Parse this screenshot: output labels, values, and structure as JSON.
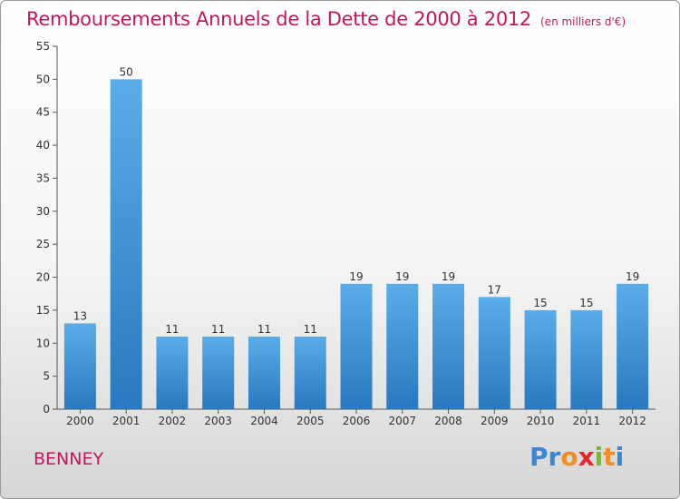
{
  "chart_data": {
    "type": "bar",
    "title": "Remboursements Annuels de la Dette de 2000 à 2012",
    "subtitle": "(en milliers d'€)",
    "categories": [
      "2000",
      "2001",
      "2002",
      "2003",
      "2004",
      "2005",
      "2006",
      "2007",
      "2008",
      "2009",
      "2010",
      "2011",
      "2012"
    ],
    "values": [
      13,
      50,
      11,
      11,
      11,
      11,
      19,
      19,
      19,
      17,
      15,
      15,
      19
    ],
    "ylim": [
      0,
      55
    ],
    "yticks": [
      0,
      5,
      10,
      15,
      20,
      25,
      30,
      35,
      40,
      45,
      50,
      55
    ],
    "grid": false,
    "xlabel": "",
    "ylabel": "",
    "bar_color": "#3d8fd6"
  },
  "commune": "BENNEY",
  "logo": {
    "letters": [
      "P",
      "r",
      "o",
      "x",
      "i",
      "t",
      "i"
    ],
    "colors": [
      "#3a86d4",
      "#3a86d4",
      "#f28c28",
      "#e8272a",
      "#7cb342",
      "#f28c28",
      "#3a86d4"
    ]
  }
}
